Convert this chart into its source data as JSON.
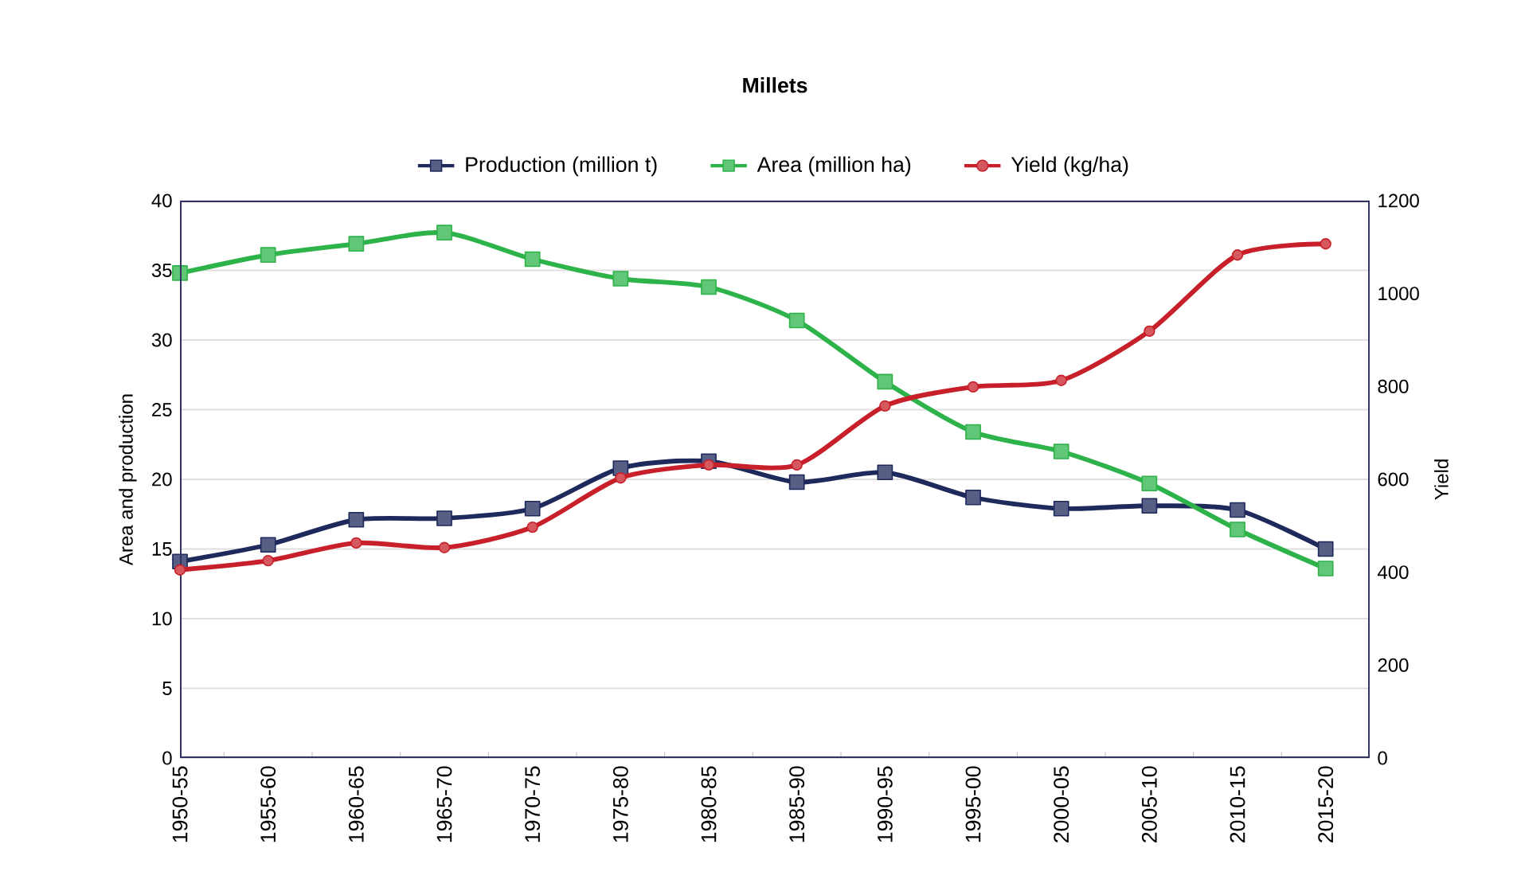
{
  "chart_data": {
    "type": "line",
    "title": "Millets",
    "categories": [
      "1950-55",
      "1955-60",
      "1960-65",
      "1965-70",
      "1970-75",
      "1975-80",
      "1980-85",
      "1985-90",
      "1990-95",
      "1995-00",
      "2000-05",
      "2005-10",
      "2010-15",
      "2015-20"
    ],
    "ylabel": "Area and production",
    "y2label": "Yield",
    "ylim": [
      0,
      40
    ],
    "yticks": [
      0,
      5,
      10,
      15,
      20,
      25,
      30,
      35,
      40
    ],
    "y2lim": [
      0,
      1200
    ],
    "y2ticks": [
      0,
      200,
      400,
      600,
      800,
      1000,
      1200
    ],
    "grid": "y",
    "legend": "top",
    "series": [
      {
        "name": "Production (million t)",
        "color": "#1f2a5c",
        "marker": "square",
        "values": [
          14.1,
          15.3,
          17.1,
          17.2,
          17.9,
          20.8,
          21.3,
          19.8,
          20.5,
          18.7,
          17.9,
          18.1,
          17.8,
          15.0
        ]
      },
      {
        "name": "Area (million ha)",
        "color": "#2db34a",
        "marker": "square",
        "values": [
          34.8,
          36.1,
          36.9,
          37.7,
          35.8,
          34.4,
          33.8,
          31.4,
          27.0,
          23.4,
          22.0,
          19.7,
          16.4,
          13.6
        ]
      },
      {
        "name": "Yield (kg/ha)",
        "color": "#c8202a",
        "marker": "circle",
        "axis": "y2",
        "values": [
          405,
          425,
          463,
          453,
          497,
          603,
          631,
          631,
          758,
          799,
          813,
          919,
          1083,
          1107
        ]
      }
    ]
  }
}
